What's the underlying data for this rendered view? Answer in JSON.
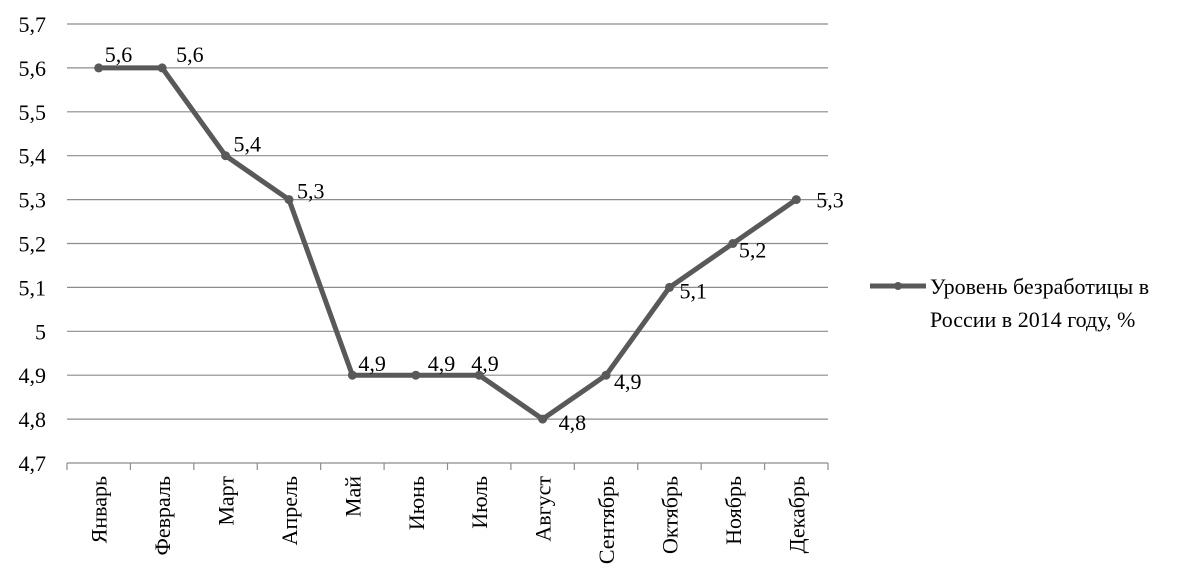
{
  "chart_data": {
    "type": "line",
    "title": "",
    "xlabel": "",
    "ylabel": "",
    "categories": [
      "Январь",
      "Февраль",
      "Март",
      "Апрель",
      "Май",
      "Июнь",
      "Июль",
      "Август",
      "Сентябрь",
      "Октябрь",
      "Ноябрь",
      "Декабрь"
    ],
    "series": [
      {
        "name": "Уровень безработицы в России в 2014 году, %",
        "values": [
          5.6,
          5.6,
          5.4,
          5.3,
          4.9,
          4.9,
          4.9,
          4.8,
          4.9,
          5.1,
          5.2,
          5.3
        ],
        "value_labels": [
          "5,6",
          "5,6",
          "5,4",
          "5,3",
          "4,9",
          "4,9",
          "4,9",
          "4,8",
          "4,9",
          "5,1",
          "5,2",
          "5,3"
        ],
        "legend_lines": [
          "Уровень безработицы в",
          "России в 2014 году, %"
        ],
        "color": "#595959"
      }
    ],
    "ylim": [
      4.7,
      5.7
    ],
    "y_ticks": [
      4.7,
      4.8,
      4.9,
      5.0,
      5.1,
      5.2,
      5.3,
      5.4,
      5.5,
      5.6,
      5.7
    ],
    "y_tick_labels": [
      "4,7",
      "4,8",
      "4,9",
      "5",
      "5,1",
      "5,2",
      "5,3",
      "5,4",
      "5,5",
      "5,6",
      "5,7"
    ],
    "grid": true,
    "legend": "right"
  }
}
